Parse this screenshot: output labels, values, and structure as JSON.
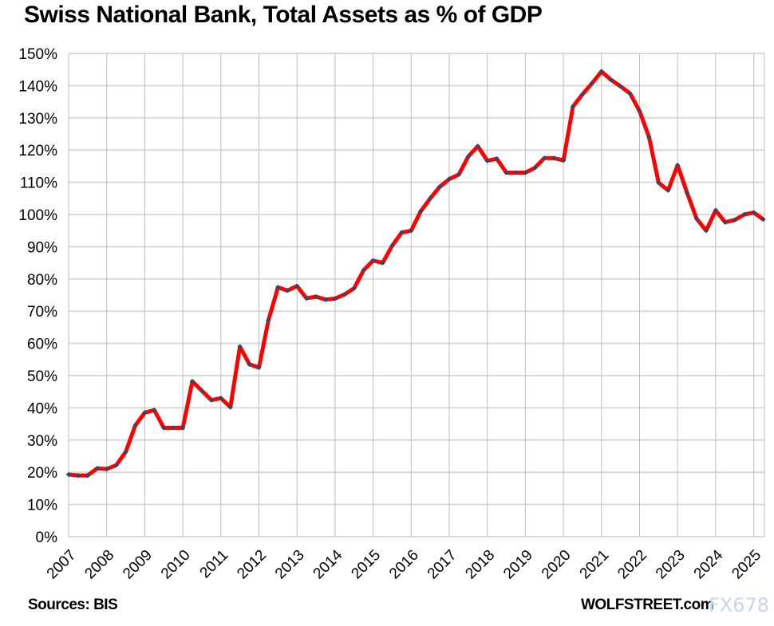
{
  "chart_data": {
    "type": "line",
    "title": "Swiss National Bank, Total Assets as % of GDP",
    "xlabel": "",
    "ylabel": "",
    "ylim": [
      0,
      150
    ],
    "yticks": [
      "0%",
      "10%",
      "20%",
      "30%",
      "40%",
      "50%",
      "60%",
      "70%",
      "80%",
      "90%",
      "100%",
      "110%",
      "120%",
      "130%",
      "140%",
      "150%"
    ],
    "xticks": [
      "2007",
      "2008",
      "2009",
      "2010",
      "2011",
      "2012",
      "2013",
      "2014",
      "2015",
      "2016",
      "2017",
      "2018",
      "2019",
      "2020",
      "2021",
      "2022",
      "2023",
      "2024",
      "2025"
    ],
    "x_frequency": "quarterly",
    "x_start": "2007 Q1",
    "grid": true,
    "line_color": "#ff0000",
    "marker_color": "#2e4a6b",
    "values": [
      19.3,
      19.0,
      19.0,
      21.2,
      21.0,
      22.2,
      26.3,
      34.5,
      38.5,
      39.3,
      33.8,
      33.8,
      33.8,
      48.2,
      45.3,
      42.4,
      43.0,
      40.2,
      59.0,
      53.5,
      52.5,
      67.2,
      77.4,
      76.4,
      77.8,
      74.0,
      74.5,
      73.6,
      73.9,
      75.2,
      77.1,
      82.7,
      85.7,
      85.0,
      90.3,
      94.4,
      95.0,
      101.0,
      105.0,
      108.6,
      111.0,
      112.4,
      118.0,
      121.2,
      116.7,
      117.3,
      113.0,
      113.0,
      113.0,
      114.5,
      117.5,
      117.5,
      116.8,
      133.5,
      137.3,
      140.7,
      144.4,
      141.8,
      139.8,
      137.6,
      132.1,
      124.0,
      109.9,
      107.5,
      115.3,
      106.7,
      98.7,
      95.0,
      101.3,
      97.6,
      98.3,
      100.0,
      100.6,
      98.5
    ]
  },
  "footer": {
    "source": "Sources: BIS",
    "brand": "WOLFSTREET.com",
    "watermark": "FX678"
  }
}
